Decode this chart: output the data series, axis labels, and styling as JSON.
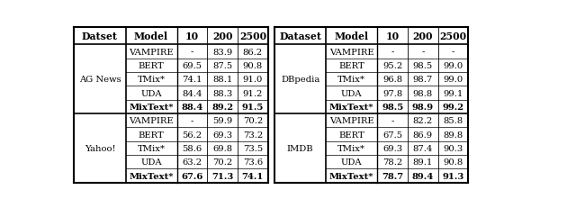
{
  "figsize": [
    6.4,
    2.32
  ],
  "dpi": 100,
  "left_table": {
    "left_col_header": "Datset",
    "models": [
      "VAMPIRE",
      "BERT",
      "TMix*",
      "UDA",
      "MixText*"
    ],
    "data": {
      "AG News": {
        "VAMPIRE": [
          "-",
          "83.9",
          "86.2"
        ],
        "BERT": [
          "69.5",
          "87.5",
          "90.8"
        ],
        "TMix*": [
          "74.1",
          "88.1",
          "91.0"
        ],
        "UDA": [
          "84.4",
          "88.3",
          "91.2"
        ],
        "MixText*": [
          "88.4",
          "89.2",
          "91.5"
        ]
      },
      "Yahoo!": {
        "VAMPIRE": [
          "-",
          "59.9",
          "70.2"
        ],
        "BERT": [
          "56.2",
          "69.3",
          "73.2"
        ],
        "TMix*": [
          "58.6",
          "69.8",
          "73.5"
        ],
        "UDA": [
          "63.2",
          "70.2",
          "73.6"
        ],
        "MixText*": [
          "67.6",
          "71.3",
          "74.1"
        ]
      }
    },
    "bold_row": "MixText*"
  },
  "right_table": {
    "left_col_header": "Dataset",
    "models": [
      "VAMPIRE",
      "BERT",
      "TMix*",
      "UDA",
      "MixText*"
    ],
    "data": {
      "DBpedia": {
        "VAMPIRE": [
          "-",
          "-",
          "-"
        ],
        "BERT": [
          "95.2",
          "98.5",
          "99.0"
        ],
        "TMix*": [
          "96.8",
          "98.7",
          "99.0"
        ],
        "UDA": [
          "97.8",
          "98.8",
          "99.1"
        ],
        "MixText*": [
          "98.5",
          "98.9",
          "99.2"
        ]
      },
      "IMDB": {
        "VAMPIRE": [
          "-",
          "82.2",
          "85.8"
        ],
        "BERT": [
          "67.5",
          "86.9",
          "89.8"
        ],
        "TMix*": [
          "69.3",
          "87.4",
          "90.3"
        ],
        "UDA": [
          "78.2",
          "89.1",
          "90.8"
        ],
        "MixText*": [
          "78.7",
          "89.4",
          "91.3"
        ]
      }
    },
    "bold_row": "MixText*"
  },
  "font_size": 7.2,
  "header_font_size": 7.8,
  "bg_color": "#ffffff"
}
